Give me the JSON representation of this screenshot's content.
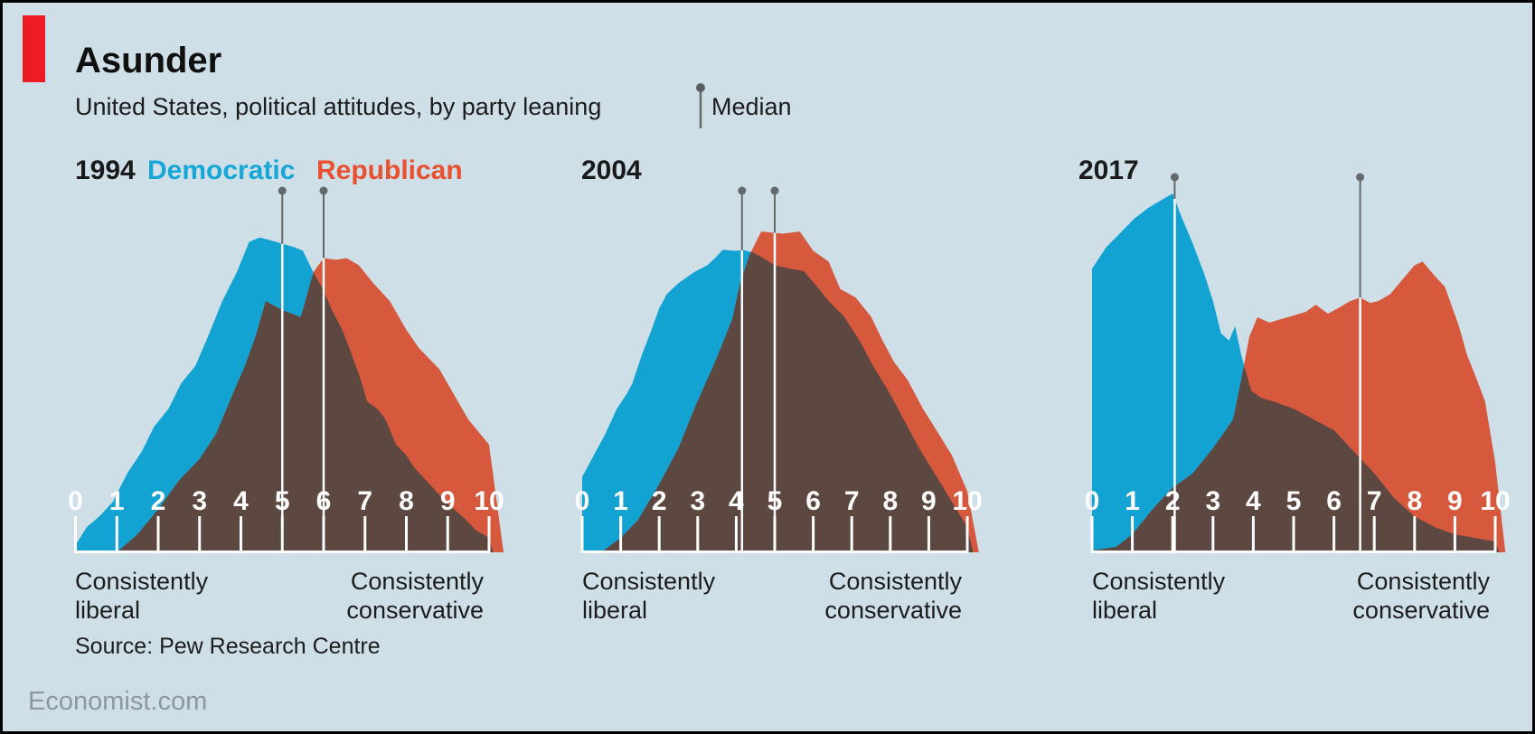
{
  "header": {
    "title": "Asunder",
    "subtitle": "United States, political attitudes, by party leaning",
    "median_label": "Median"
  },
  "legend": {
    "democratic": "Democratic",
    "republican": "Republican"
  },
  "colors": {
    "background": "#cedfe8",
    "democratic_fill": "#12a3d3",
    "republican_fill": "#d6593d",
    "democratic_text": "#16a6d8",
    "republican_text": "#e8502f",
    "overlap_fill": "#5c4741",
    "median_gray": "#63686c",
    "median_white": "#ffffff",
    "axis_white": "#ffffff",
    "brand_red": "#ed1c24"
  },
  "axis": {
    "tick_labels": [
      "0",
      "1",
      "2",
      "3",
      "4",
      "5",
      "6",
      "7",
      "8",
      "9",
      "10"
    ],
    "left_caption_line1": "Consistently",
    "left_caption_line2": "liberal",
    "right_caption_line1": "Consistently",
    "right_caption_line2": "conservative"
  },
  "footer": {
    "source": "Source: Pew Research Centre",
    "site": "Economist.com"
  },
  "chart_data": [
    {
      "type": "area",
      "year": "1994",
      "xlim": [
        0,
        10
      ],
      "median_democratic": 5.0,
      "median_republican": 6.0,
      "series": [
        {
          "name": "Democratic",
          "points": [
            [
              0,
              0.02
            ],
            [
              0.27,
              0.07
            ],
            [
              0.58,
              0.1
            ],
            [
              0.9,
              0.14
            ],
            [
              1.25,
              0.22
            ],
            [
              1.6,
              0.28
            ],
            [
              1.9,
              0.35
            ],
            [
              2.25,
              0.4
            ],
            [
              2.55,
              0.47
            ],
            [
              2.9,
              0.52
            ],
            [
              3.2,
              0.6
            ],
            [
              3.55,
              0.7
            ],
            [
              3.9,
              0.78
            ],
            [
              4.2,
              0.865
            ],
            [
              4.45,
              0.877
            ],
            [
              4.7,
              0.87
            ],
            [
              5,
              0.86
            ],
            [
              5.3,
              0.85
            ],
            [
              5.5,
              0.84
            ],
            [
              5.75,
              0.78
            ],
            [
              6,
              0.73
            ],
            [
              6.2,
              0.675
            ],
            [
              6.45,
              0.62
            ],
            [
              6.65,
              0.56
            ],
            [
              6.9,
              0.48
            ],
            [
              7.05,
              0.42
            ],
            [
              7.3,
              0.4
            ],
            [
              7.5,
              0.37
            ],
            [
              7.75,
              0.3
            ],
            [
              8,
              0.27
            ],
            [
              8.2,
              0.235
            ],
            [
              8.6,
              0.185
            ],
            [
              9,
              0.135
            ],
            [
              9.4,
              0.095
            ],
            [
              9.7,
              0.06
            ],
            [
              10,
              0.04
            ],
            [
              10.1,
              0
            ]
          ]
        },
        {
          "name": "Republican",
          "points": [
            [
              1,
              0
            ],
            [
              1.5,
              0.05
            ],
            [
              2,
              0.12
            ],
            [
              2.5,
              0.2
            ],
            [
              3,
              0.26
            ],
            [
              3.4,
              0.33
            ],
            [
              3.8,
              0.44
            ],
            [
              4.1,
              0.52
            ],
            [
              4.35,
              0.6
            ],
            [
              4.6,
              0.7
            ],
            [
              5,
              0.675
            ],
            [
              5.45,
              0.655
            ],
            [
              5.75,
              0.78
            ],
            [
              6,
              0.82
            ],
            [
              6.3,
              0.815
            ],
            [
              6.55,
              0.82
            ],
            [
              6.85,
              0.8
            ],
            [
              7.2,
              0.75
            ],
            [
              7.6,
              0.7
            ],
            [
              8,
              0.62
            ],
            [
              8.3,
              0.57
            ],
            [
              8.8,
              0.51
            ],
            [
              9.1,
              0.45
            ],
            [
              9.5,
              0.37
            ],
            [
              10,
              0.3
            ],
            [
              10.35,
              0
            ]
          ]
        }
      ]
    },
    {
      "type": "area",
      "year": "2004",
      "xlim": [
        0,
        10
      ],
      "median_democratic": 4.15,
      "median_republican": 5.0,
      "series": [
        {
          "name": "Democratic",
          "points": [
            [
              0,
              0.21
            ],
            [
              0.3,
              0.27
            ],
            [
              0.6,
              0.33
            ],
            [
              0.9,
              0.4
            ],
            [
              1.15,
              0.44
            ],
            [
              1.3,
              0.47
            ],
            [
              1.55,
              0.55
            ],
            [
              1.8,
              0.62
            ],
            [
              2,
              0.68
            ],
            [
              2.2,
              0.72
            ],
            [
              2.5,
              0.75
            ],
            [
              2.9,
              0.78
            ],
            [
              3.25,
              0.8
            ],
            [
              3.45,
              0.82
            ],
            [
              3.65,
              0.843
            ],
            [
              3.95,
              0.84
            ],
            [
              4.2,
              0.842
            ],
            [
              4.45,
              0.835
            ],
            [
              4.7,
              0.82
            ],
            [
              5,
              0.8
            ],
            [
              5.4,
              0.79
            ],
            [
              5.75,
              0.784
            ],
            [
              6.1,
              0.74
            ],
            [
              6.4,
              0.7
            ],
            [
              6.8,
              0.657
            ],
            [
              7.2,
              0.59
            ],
            [
              7.55,
              0.52
            ],
            [
              7.95,
              0.45
            ],
            [
              8.35,
              0.37
            ],
            [
              8.75,
              0.29
            ],
            [
              9.15,
              0.22
            ],
            [
              9.55,
              0.15
            ],
            [
              10,
              0.07
            ],
            [
              10.15,
              0
            ]
          ]
        },
        {
          "name": "Republican",
          "points": [
            [
              0.5,
              0
            ],
            [
              1,
              0.04
            ],
            [
              1.45,
              0.09
            ],
            [
              1.95,
              0.18
            ],
            [
              2.5,
              0.29
            ],
            [
              2.95,
              0.41
            ],
            [
              3.45,
              0.53
            ],
            [
              3.9,
              0.65
            ],
            [
              4.1,
              0.75
            ],
            [
              4.35,
              0.83
            ],
            [
              4.65,
              0.894
            ],
            [
              5.2,
              0.888
            ],
            [
              5.65,
              0.894
            ],
            [
              6,
              0.84
            ],
            [
              6.4,
              0.81
            ],
            [
              6.7,
              0.734
            ],
            [
              7.1,
              0.71
            ],
            [
              7.5,
              0.657
            ],
            [
              7.8,
              0.59
            ],
            [
              8.1,
              0.53
            ],
            [
              8.45,
              0.48
            ],
            [
              8.85,
              0.4
            ],
            [
              9.2,
              0.34
            ],
            [
              9.6,
              0.27
            ],
            [
              10,
              0.17
            ],
            [
              10.3,
              0
            ]
          ]
        }
      ]
    },
    {
      "type": "area",
      "year": "2017",
      "xlim": [
        0,
        10
      ],
      "median_democratic": 2.05,
      "median_republican": 6.65,
      "series": [
        {
          "name": "Democratic",
          "points": [
            [
              0,
              0.79
            ],
            [
              0.35,
              0.85
            ],
            [
              0.7,
              0.89
            ],
            [
              1.05,
              0.93
            ],
            [
              1.4,
              0.96
            ],
            [
              1.7,
              0.98
            ],
            [
              2,
              1
            ],
            [
              2.2,
              0.94
            ],
            [
              2.5,
              0.86
            ],
            [
              2.8,
              0.77
            ],
            [
              3,
              0.7
            ],
            [
              3.2,
              0.61
            ],
            [
              3.4,
              0.59
            ],
            [
              3.55,
              0.63
            ],
            [
              3.7,
              0.55
            ],
            [
              3.95,
              0.45
            ],
            [
              4.2,
              0.43
            ],
            [
              4.5,
              0.42
            ],
            [
              5,
              0.4
            ],
            [
              5.5,
              0.37
            ],
            [
              6,
              0.34
            ],
            [
              6.5,
              0.28
            ],
            [
              7,
              0.22
            ],
            [
              7.5,
              0.15
            ],
            [
              8,
              0.1
            ],
            [
              8.5,
              0.07
            ],
            [
              9,
              0.05
            ],
            [
              9.5,
              0.04
            ],
            [
              10,
              0.03
            ],
            [
              10.1,
              0
            ]
          ]
        },
        {
          "name": "Republican",
          "points": [
            [
              0,
              0.005
            ],
            [
              0.6,
              0.015
            ],
            [
              1,
              0.05
            ],
            [
              1.5,
              0.12
            ],
            [
              2,
              0.18
            ],
            [
              2.5,
              0.22
            ],
            [
              3,
              0.29
            ],
            [
              3.5,
              0.37
            ],
            [
              3.7,
              0.48
            ],
            [
              3.9,
              0.6
            ],
            [
              4.1,
              0.655
            ],
            [
              4.4,
              0.64
            ],
            [
              4.7,
              0.65
            ],
            [
              5,
              0.66
            ],
            [
              5.3,
              0.67
            ],
            [
              5.55,
              0.69
            ],
            [
              5.85,
              0.665
            ],
            [
              6.1,
              0.68
            ],
            [
              6.4,
              0.7
            ],
            [
              6.65,
              0.71
            ],
            [
              6.9,
              0.695
            ],
            [
              7.1,
              0.7
            ],
            [
              7.4,
              0.72
            ],
            [
              7.7,
              0.76
            ],
            [
              8,
              0.8
            ],
            [
              8.2,
              0.81
            ],
            [
              8.5,
              0.77
            ],
            [
              8.75,
              0.74
            ],
            [
              9.1,
              0.63
            ],
            [
              9.3,
              0.55
            ],
            [
              9.55,
              0.48
            ],
            [
              9.75,
              0.42
            ],
            [
              10,
              0.25
            ],
            [
              10.25,
              0
            ]
          ]
        }
      ]
    }
  ]
}
